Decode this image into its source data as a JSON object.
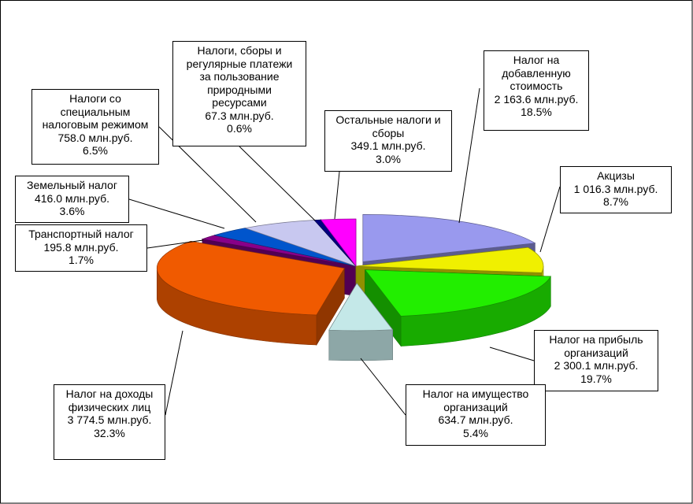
{
  "chart_data": {
    "type": "pie",
    "style": "3d-exploded",
    "slices": [
      {
        "lines": [
          "Налог на",
          "добавленную",
          "стоимость"
        ],
        "value_text": "2 163.6 млн.руб.",
        "percent_text": "18.5%",
        "value": 2163.6,
        "percent": 18.5,
        "color": "#9999ee"
      },
      {
        "lines": [
          "Акцизы"
        ],
        "value_text": "1 016.3 млн.руб.",
        "percent_text": "8.7%",
        "value": 1016.3,
        "percent": 8.7,
        "color": "#f0f000"
      },
      {
        "lines": [
          "Налог на прибыль",
          "организаций"
        ],
        "value_text": "2 300.1 млн.руб.",
        "percent_text": "19.7%",
        "value": 2300.1,
        "percent": 19.7,
        "color": "#22ee00"
      },
      {
        "lines": [
          "Налог на имущество",
          "организаций"
        ],
        "value_text": "634.7 млн.руб.",
        "percent_text": "5.4%",
        "value": 634.7,
        "percent": 5.4,
        "color": "#c4e8e8"
      },
      {
        "lines": [
          "Налог на доходы",
          "физических лиц"
        ],
        "value_text": "3 774.5 млн.руб.",
        "percent_text": "32.3%",
        "value": 3774.5,
        "percent": 32.3,
        "color": "#f05a00"
      },
      {
        "lines": [
          "Транспортный налог"
        ],
        "value_text": "195.8 млн.руб.",
        "percent_text": "1.7%",
        "value": 195.8,
        "percent": 1.7,
        "color": "#880088"
      },
      {
        "lines": [
          "Земельный налог"
        ],
        "value_text": "416.0 млн.руб.",
        "percent_text": "3.6%",
        "value": 416.0,
        "percent": 3.6,
        "color": "#0055cc"
      },
      {
        "lines": [
          "Налоги со",
          "специальным",
          "налоговым режимом"
        ],
        "value_text": "758.0 млн.руб.",
        "percent_text": "6.5%",
        "value": 758.0,
        "percent": 6.5,
        "color": "#c8c8f0"
      },
      {
        "lines": [
          "Налоги, сборы и",
          "регулярные платежи",
          "за пользование",
          "природными",
          "ресурсами"
        ],
        "value_text": "67.3 млн.руб.",
        "percent_text": "0.6%",
        "value": 67.3,
        "percent": 0.6,
        "color": "#000080"
      },
      {
        "lines": [
          "Остальные налоги и",
          "сборы"
        ],
        "value_text": "349.1 млн.руб.",
        "percent_text": "3.0%",
        "value": 349.1,
        "percent": 3.0,
        "color": "#ff00ff"
      }
    ]
  }
}
